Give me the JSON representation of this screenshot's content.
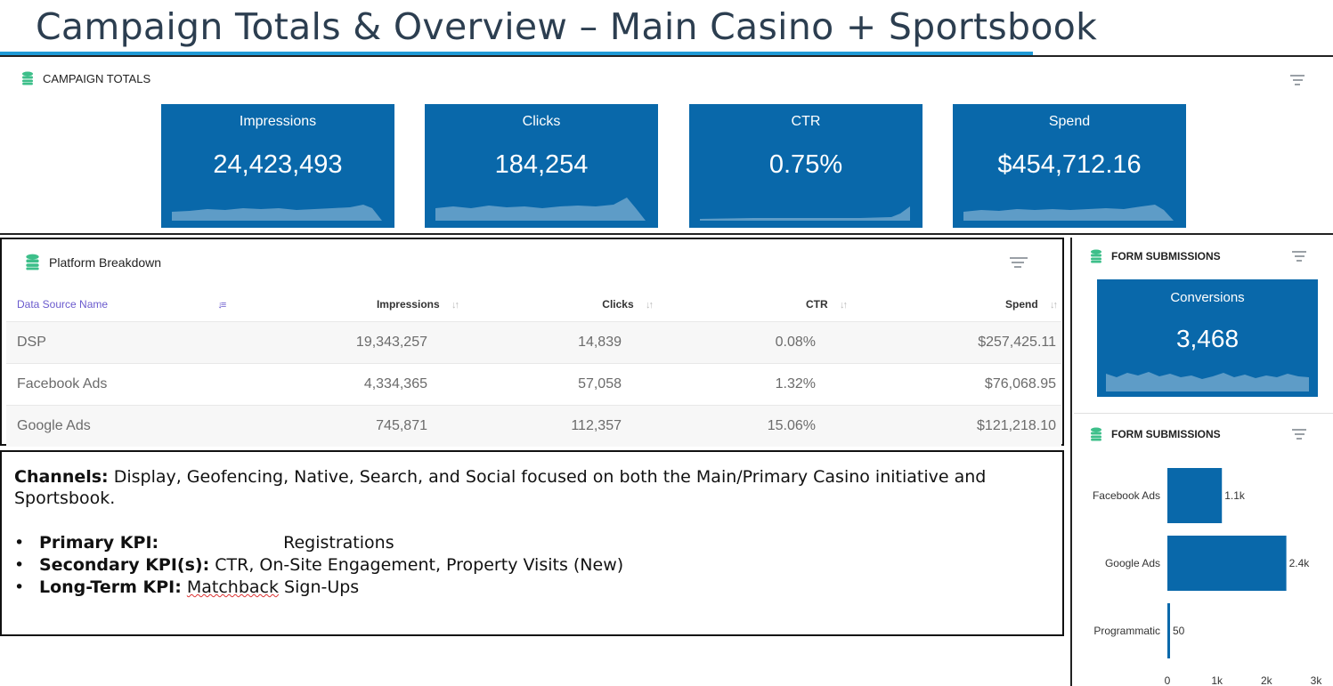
{
  "header": {
    "title": "Campaign Totals & Overview – Main Casino + Sportsbook"
  },
  "campaign_totals": {
    "title": "CAMPAIGN TOTALS",
    "tiles": [
      {
        "label": "Impressions",
        "value": "24,423,493"
      },
      {
        "label": "Clicks",
        "value": "184,254"
      },
      {
        "label": "CTR",
        "value": "0.75%"
      },
      {
        "label": "Spend",
        "value": "$454,712.16"
      }
    ]
  },
  "platform_breakdown": {
    "title": "Platform Breakdown",
    "columns": [
      "Data Source Name",
      "Impressions",
      "Clicks",
      "CTR",
      "Spend"
    ],
    "rows": [
      [
        "DSP",
        "19,343,257",
        "14,839",
        "0.08%",
        "$257,425.11"
      ],
      [
        "Facebook Ads",
        "4,334,365",
        "57,058",
        "1.32%",
        "$76,068.95"
      ],
      [
        "Google Ads",
        "745,871",
        "112,357",
        "15.06%",
        "$121,218.10"
      ]
    ]
  },
  "notes": {
    "channels_label": "Channels:",
    "channels_text": " Display,  Geofencing, Native, Search, and Social focused on both the Main/Primary Casino initiative and Sportsbook.",
    "items": [
      {
        "label": "Primary KPI:",
        "text": "Registrations"
      },
      {
        "label": "Secondary KPI(s):",
        "text": " CTR, On-Site Engagement, Property Visits (New)"
      },
      {
        "label": "Long-Term KPI:",
        "text_underlined": "Matchback",
        "text": " Sign-Ups"
      }
    ]
  },
  "form_submissions_tile": {
    "title": "FORM SUBMISSIONS",
    "label": "Conversions",
    "value": "3,468"
  },
  "form_submissions_chart": {
    "title": "FORM SUBMISSIONS"
  },
  "colors": {
    "tile_blue": "#0968aa",
    "accent_rule": "#1f9ad6",
    "db_icon_green": "#3dbf8a"
  },
  "chart_data": {
    "type": "bar",
    "orientation": "horizontal",
    "title": "FORM SUBMISSIONS",
    "categories": [
      "Facebook Ads",
      "Google Ads",
      "Programmatic"
    ],
    "values": [
      1100,
      2400,
      50
    ],
    "data_labels": [
      "1.1k",
      "2.4k",
      "50"
    ],
    "xlim": [
      0,
      3000
    ],
    "x_ticks": [
      "0",
      "1k",
      "2k",
      "3k"
    ],
    "grid": false,
    "color": "#0968aa"
  }
}
